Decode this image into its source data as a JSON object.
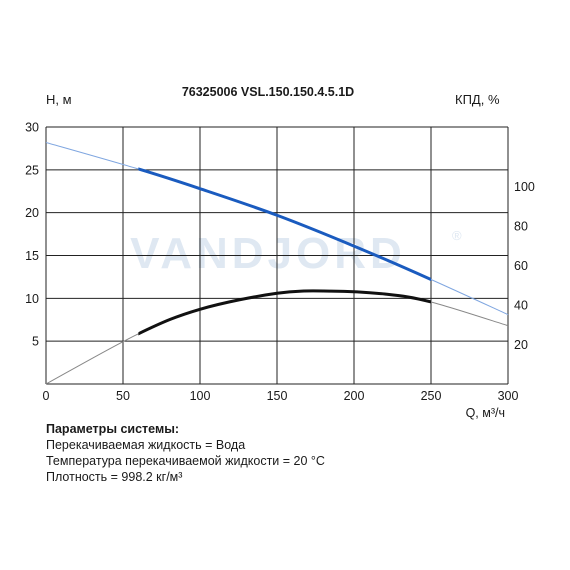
{
  "chart_data": {
    "type": "line",
    "title": "76325006 VSL.150.150.4.5.1D",
    "ylabel": "H, м",
    "y2label": "КПД, %",
    "xlabel": "Q, м³/ч",
    "watermark": "VANDJORD",
    "watermark_mark": "®",
    "xlim": [
      0,
      300
    ],
    "ylim": [
      0,
      30
    ],
    "y2lim": [
      0,
      130
    ],
    "x_ticks": [
      "0",
      "50",
      "100",
      "150",
      "200",
      "250",
      "300"
    ],
    "y_ticks": [
      "5",
      "10",
      "15",
      "20",
      "25",
      "30"
    ],
    "y2_ticks": [
      "20",
      "40",
      "60",
      "80",
      "100"
    ],
    "grid": true,
    "series": [
      {
        "axis": "y",
        "color": "#1a5bbf",
        "x": [
          0,
          60,
          100,
          150,
          200,
          250,
          300
        ],
        "values": [
          28.2,
          25.1,
          22.8,
          19.7,
          16.1,
          12.2,
          8.1
        ],
        "operating_range": [
          60,
          250
        ]
      },
      {
        "axis": "y2",
        "color": "#111111",
        "x": [
          0,
          60,
          100,
          150,
          185,
          220,
          250,
          300
        ],
        "values": [
          0,
          25.4,
          37.8,
          45.9,
          47.0,
          45.5,
          41.5,
          29.5
        ],
        "operating_range": [
          60,
          250
        ]
      }
    ]
  },
  "params": {
    "title": "Параметры системы:",
    "lines": [
      "Перекачиваемая жидкость = Вода",
      "Температура перекачиваемой жидкости = 20 °C",
      "Плотность = 998.2 кг/м³"
    ]
  }
}
